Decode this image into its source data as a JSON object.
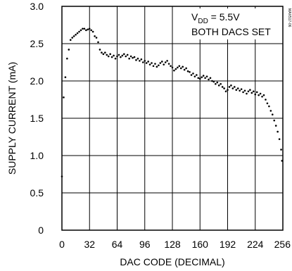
{
  "figure_id": "MAX517-06",
  "chart_data": {
    "type": "scatter",
    "title": "",
    "xlabel": "DAC CODE (DECIMAL)",
    "ylabel": "SUPPLY CURRENT (mA)",
    "xlim": [
      0,
      256
    ],
    "ylim": [
      0,
      3.0
    ],
    "x_ticks": [
      0,
      32,
      64,
      96,
      128,
      160,
      192,
      224,
      256
    ],
    "x_tick_labels": [
      "0",
      "32",
      "64",
      "96",
      "128",
      "160",
      "192",
      "224",
      "256"
    ],
    "y_ticks": [
      0,
      0.5,
      1.0,
      1.5,
      2.0,
      2.5,
      3.0
    ],
    "y_tick_labels": [
      "0",
      "0.5",
      "1.0",
      "1.5",
      "2.0",
      "2.5",
      "3.0"
    ],
    "grid": true,
    "annotation": {
      "line1_main": "V",
      "line1_sub": "DD",
      "line1_rest": " = 5.5V",
      "line2": "BOTH DACS SET"
    },
    "series": [
      {
        "x": [
          0,
          2,
          4,
          6,
          8,
          10,
          12,
          14,
          16,
          18,
          20,
          22,
          24,
          26,
          28,
          30,
          32,
          34,
          36,
          38,
          40,
          42,
          44,
          46,
          48,
          50,
          52,
          54,
          56,
          58,
          60,
          62,
          64,
          66,
          68,
          70,
          72,
          74,
          76,
          78,
          80,
          82,
          84,
          86,
          88,
          90,
          92,
          94,
          96,
          98,
          100,
          102,
          104,
          106,
          108,
          110,
          112,
          114,
          116,
          118,
          120,
          122,
          124,
          126,
          128,
          130,
          132,
          134,
          136,
          138,
          140,
          142,
          144,
          146,
          148,
          150,
          152,
          154,
          156,
          158,
          160,
          162,
          164,
          166,
          168,
          170,
          172,
          174,
          176,
          178,
          180,
          182,
          184,
          186,
          188,
          190,
          192,
          194,
          196,
          198,
          200,
          202,
          204,
          206,
          208,
          210,
          212,
          214,
          216,
          218,
          220,
          222,
          224,
          226,
          228,
          230,
          232,
          234,
          236,
          238,
          240,
          242,
          244,
          246,
          248,
          250,
          252,
          254,
          255
        ],
        "y": [
          0.72,
          1.78,
          2.05,
          2.3,
          2.42,
          2.55,
          2.58,
          2.6,
          2.62,
          2.64,
          2.66,
          2.68,
          2.7,
          2.7,
          2.68,
          2.69,
          2.7,
          2.68,
          2.66,
          2.6,
          2.58,
          2.52,
          2.42,
          2.38,
          2.36,
          2.38,
          2.35,
          2.33,
          2.36,
          2.32,
          2.34,
          2.3,
          2.33,
          2.35,
          2.32,
          2.34,
          2.36,
          2.33,
          2.35,
          2.3,
          2.33,
          2.31,
          2.32,
          2.28,
          2.3,
          2.27,
          2.29,
          2.25,
          2.27,
          2.24,
          2.26,
          2.22,
          2.24,
          2.2,
          2.23,
          2.19,
          2.21,
          2.24,
          2.26,
          2.22,
          2.25,
          2.27,
          2.23,
          2.2,
          2.18,
          2.14,
          2.16,
          2.18,
          2.2,
          2.17,
          2.19,
          2.15,
          2.17,
          2.13,
          2.12,
          2.08,
          2.1,
          2.06,
          2.08,
          2.04,
          2.03,
          2.05,
          2.07,
          2.04,
          2.06,
          2.02,
          2.04,
          2.0,
          1.99,
          1.96,
          1.98,
          1.94,
          1.96,
          1.92,
          1.9,
          1.86,
          1.88,
          1.92,
          1.94,
          1.9,
          1.92,
          1.88,
          1.9,
          1.87,
          1.89,
          1.85,
          1.87,
          1.83,
          1.86,
          1.88,
          1.84,
          1.86,
          1.82,
          1.85,
          1.81,
          1.83,
          1.79,
          1.81,
          1.75,
          1.7,
          1.66,
          1.6,
          1.55,
          1.47,
          1.4,
          1.32,
          1.22,
          1.08,
          0.93
        ]
      }
    ]
  }
}
